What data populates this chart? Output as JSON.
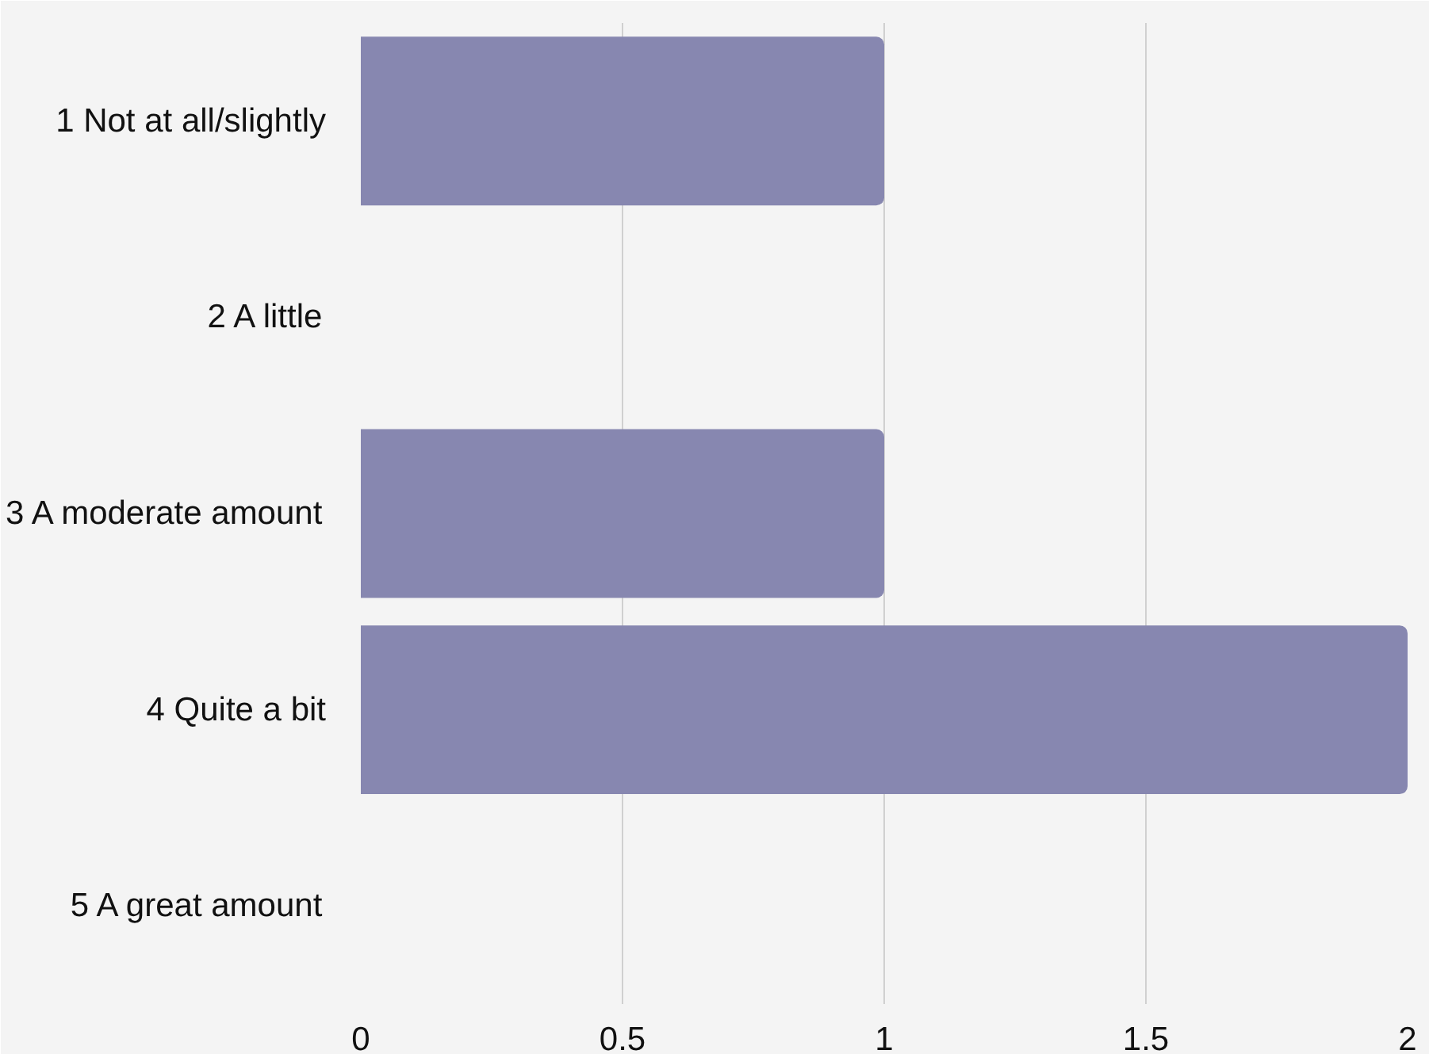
{
  "chart_data": {
    "type": "bar",
    "orientation": "horizontal",
    "categories": [
      "1 Not at all/slightly",
      "2 A little",
      "3 A moderate amount",
      "4 Quite a bit",
      "5 A great amount"
    ],
    "values": [
      1,
      0,
      1,
      2,
      0
    ],
    "color": "#8787b0",
    "xlim": [
      0,
      2
    ],
    "xticks": [
      0,
      0.5,
      1,
      1.5,
      2
    ],
    "grid": "x"
  }
}
